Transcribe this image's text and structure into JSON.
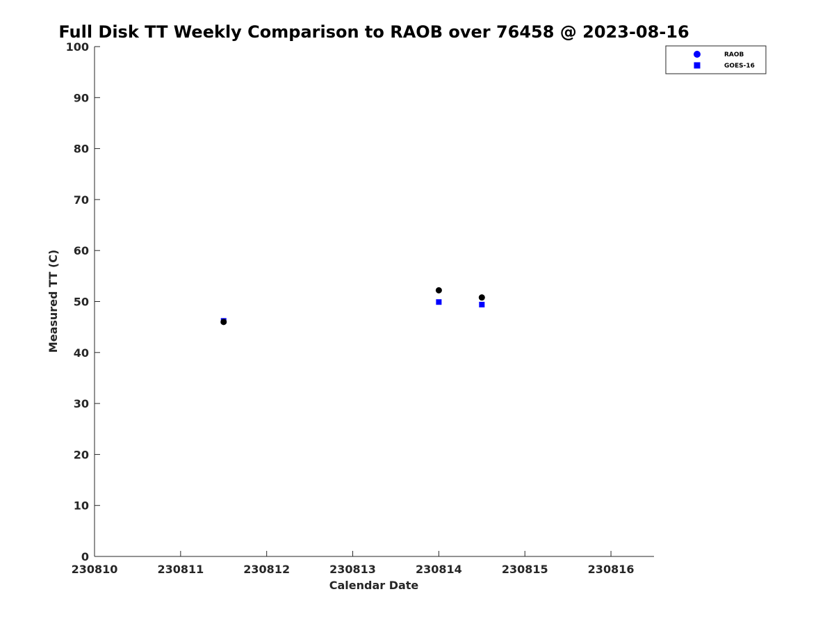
{
  "chart_data": {
    "type": "scatter",
    "title": "Full Disk TT Weekly Comparison to RAOB over 76458 @ 2023-08-16",
    "xlabel": "Calendar Date",
    "ylabel": "Measured TT (C)",
    "xlim": [
      230810,
      230816.5
    ],
    "ylim": [
      0,
      100
    ],
    "x_ticks": [
      230810,
      230811,
      230812,
      230813,
      230814,
      230815,
      230816
    ],
    "x_tick_labels": [
      "230810",
      "230811",
      "230812",
      "230813",
      "230814",
      "230815",
      "230816"
    ],
    "y_ticks": [
      0,
      10,
      20,
      30,
      40,
      50,
      60,
      70,
      80,
      90,
      100
    ],
    "y_tick_labels": [
      "0",
      "10",
      "20",
      "30",
      "40",
      "50",
      "60",
      "70",
      "80",
      "90",
      "100"
    ],
    "grid": false,
    "legend_position": "top-right",
    "series": [
      {
        "name": "RAOB",
        "marker": "circle",
        "color": "#000000",
        "legend_color": "#0000ff",
        "x": [
          230811.5,
          230814.0,
          230814.5
        ],
        "y": [
          46.0,
          52.2,
          50.8
        ]
      },
      {
        "name": "GOES-16",
        "marker": "square",
        "color": "#0000ff",
        "legend_color": "#0000ff",
        "x": [
          230811.5,
          230814.0,
          230814.5
        ],
        "y": [
          46.2,
          49.9,
          49.4
        ]
      }
    ]
  }
}
